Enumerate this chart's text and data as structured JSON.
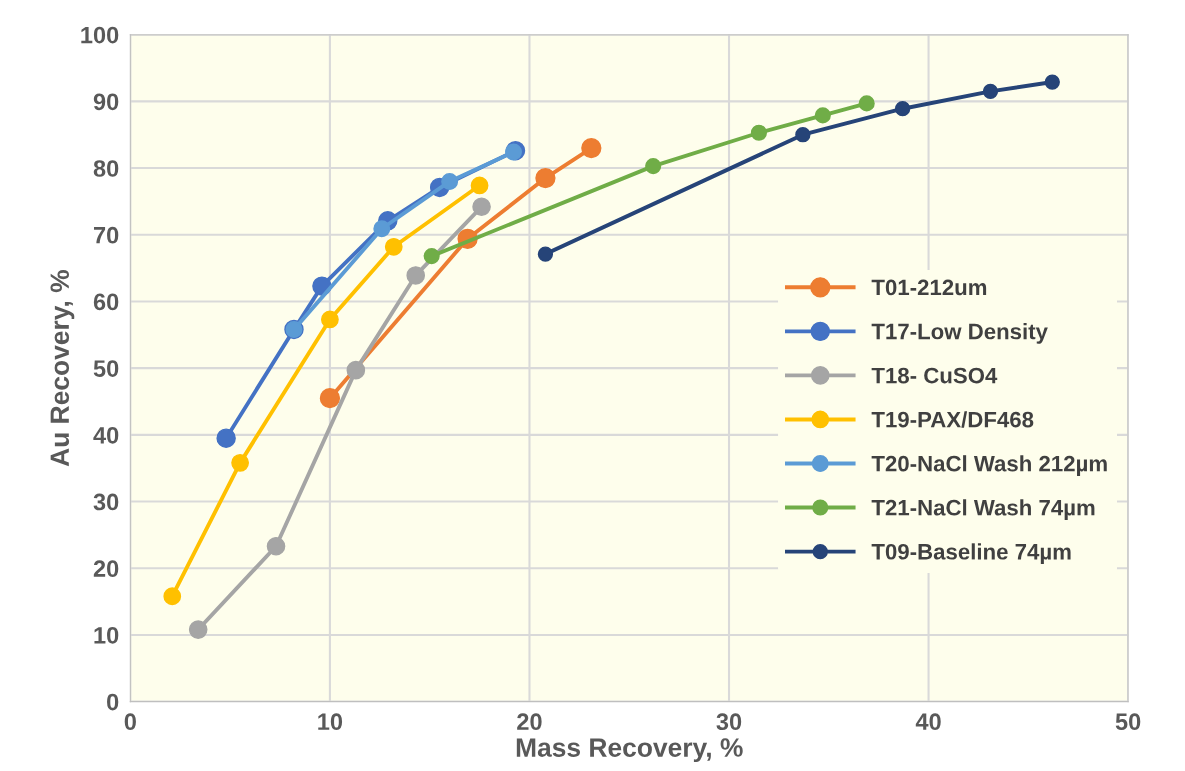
{
  "chart_data": {
    "type": "line",
    "xlabel": "Mass Recovery, %",
    "ylabel": "Au Recovery, %",
    "xlim": [
      0,
      50
    ],
    "xticks": [
      0,
      10,
      20,
      30,
      40,
      50
    ],
    "ylim": [
      0,
      100
    ],
    "yticks": [
      0,
      10,
      20,
      30,
      40,
      50,
      60,
      70,
      80,
      90,
      100
    ],
    "grid": true,
    "legend": "right",
    "marker": "circle",
    "line_style": "solid",
    "series": [
      {
        "name": "T01-212um",
        "color": "#ed7d31",
        "x": [
          10.0,
          16.9,
          20.8,
          23.1
        ],
        "values": [
          45.5,
          69.4,
          78.5,
          83.0
        ]
      },
      {
        "name": "T17-Low Density",
        "color": "#4472c4",
        "x": [
          4.8,
          8.2,
          9.6,
          12.9,
          15.5,
          19.3
        ],
        "values": [
          39.5,
          55.8,
          62.3,
          72.1,
          77.1,
          82.6
        ]
      },
      {
        "name": "T18- CuSO4",
        "color": "#a5a5a5",
        "x": [
          3.4,
          7.3,
          11.3,
          14.3,
          17.6
        ],
        "values": [
          10.8,
          23.3,
          49.7,
          63.9,
          74.2
        ]
      },
      {
        "name": "T19-PAX/DF468",
        "color": "#ffc000",
        "x": [
          2.1,
          5.5,
          10.0,
          13.2,
          17.5
        ],
        "values": [
          15.8,
          35.8,
          57.3,
          68.2,
          77.4
        ]
      },
      {
        "name": "T20-NaCl Wash 212µm",
        "color": "#5b9bd5",
        "x": [
          8.2,
          12.6,
          16.0,
          19.2
        ],
        "values": [
          55.8,
          70.9,
          78.0,
          82.4
        ]
      },
      {
        "name": "T21-NaCl Wash 74µm",
        "color": "#70ad47",
        "x": [
          15.1,
          26.2,
          31.5,
          34.7,
          36.9
        ],
        "values": [
          66.8,
          80.3,
          85.3,
          87.9,
          89.7
        ]
      },
      {
        "name": "T09-Baseline 74µm",
        "color": "#264478",
        "x": [
          20.8,
          33.7,
          38.7,
          43.1,
          46.2
        ],
        "values": [
          67.1,
          85.0,
          88.9,
          91.5,
          92.9
        ]
      }
    ]
  }
}
